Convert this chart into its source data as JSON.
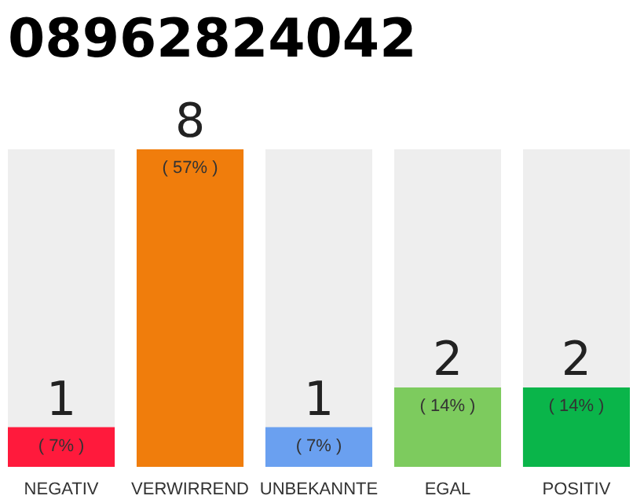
{
  "chart_data": {
    "type": "bar",
    "title": "08962824042",
    "categories": [
      "NEGATIV",
      "VERWIRREND",
      "UNBEKANNTE",
      "EGAL",
      "POSITIV"
    ],
    "values": [
      1,
      8,
      1,
      2,
      2
    ],
    "colors": [
      "#ff1a3c",
      "#f07d0c",
      "#6aa0f0",
      "#7dcb5e",
      "#0ab54a"
    ],
    "ylim": [
      0,
      8
    ],
    "data_labels": true,
    "tick_labels": "x",
    "grid": false,
    "annotations": [
      {
        "text": "( 7% )",
        "x": "NEGATIV",
        "y": 1
      },
      {
        "text": "( 57% )",
        "x": "VERWIRREND",
        "y": 8
      },
      {
        "text": "( 7% )",
        "x": "UNBEKANNTE",
        "y": 1
      },
      {
        "text": "( 14% )",
        "x": "EGAL",
        "y": 2
      },
      {
        "text": "( 14% )",
        "x": "POSITIV",
        "y": 2
      }
    ]
  }
}
